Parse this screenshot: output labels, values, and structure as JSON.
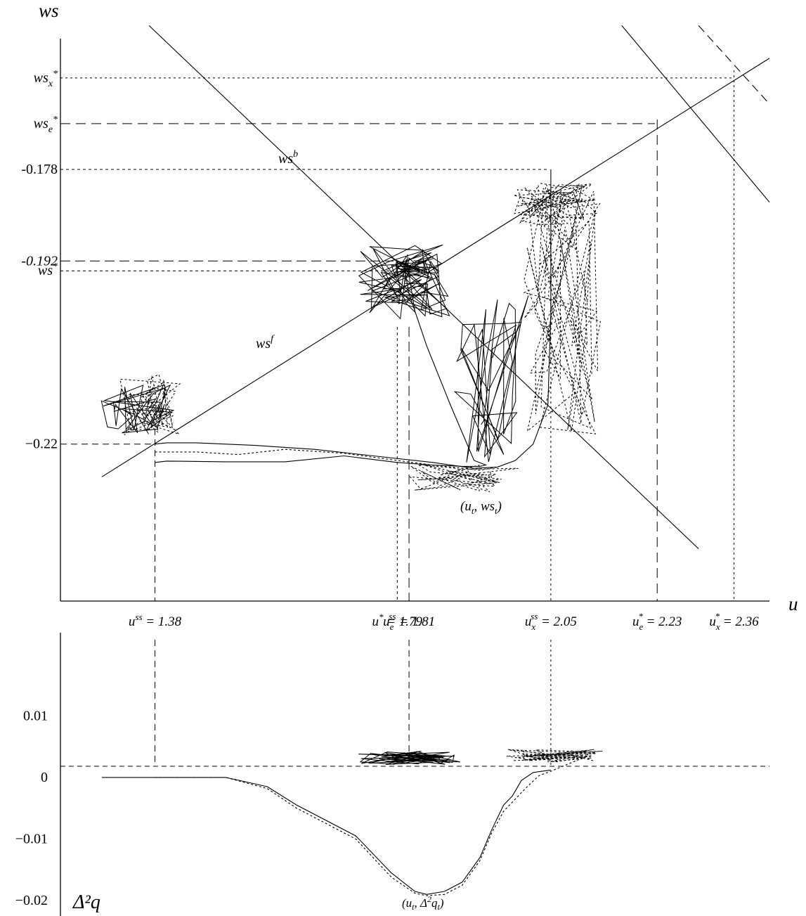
{
  "chart_data": [
    {
      "type": "line",
      "panel": "top",
      "ylabel": "ws",
      "xlabel": "u",
      "x_ticks": [
        {
          "value": 1.38,
          "sym": "u",
          "sup": "ss",
          "sub": "",
          "text": " = 1.38"
        },
        {
          "value": 1.79,
          "sym": "u",
          "sup": "*",
          "sub": "",
          "text": " = 1.79"
        },
        {
          "value": 1.81,
          "sym": "u",
          "sup": "ss",
          "sub": "e",
          "text": " = 1.81"
        },
        {
          "value": 2.05,
          "sym": "u",
          "sup": "ss",
          "sub": "x",
          "text": " = 2.05"
        },
        {
          "value": 2.23,
          "sym": "u",
          "sup": "*",
          "sub": "e",
          "text": " = 2.23"
        },
        {
          "value": 2.36,
          "sym": "u",
          "sup": "*",
          "sub": "x",
          "text": " = 2.36"
        }
      ],
      "y_ticks": [
        {
          "value": -0.164,
          "sym": "ws",
          "sup": "*",
          "sub": "x",
          "text": ""
        },
        {
          "value": -0.171,
          "sym": "ws",
          "sup": "*",
          "sub": "e",
          "text": ""
        },
        {
          "value": -0.178,
          "sym": "",
          "sup": "",
          "sub": "",
          "text": "-0.178"
        },
        {
          "value": -0.192,
          "sym": "",
          "sup": "",
          "sub": "",
          "text": "-0.192"
        },
        {
          "value": -0.1935,
          "sym": "ws",
          "sup": "*",
          "sub": "",
          "text": ""
        },
        {
          "value": -0.22,
          "sym": "",
          "sup": "",
          "sub": "",
          "text": "−0.22"
        }
      ],
      "xlim": [
        1.22,
        2.42
      ],
      "ylim": [
        -0.244,
        -0.158
      ],
      "series": [
        {
          "name": "ws^f",
          "style": "solid",
          "x": [
            1.29,
            2.42
          ],
          "y": [
            -0.225,
            -0.161
          ]
        },
        {
          "name": "ws^b",
          "style": "solid",
          "x": [
            1.37,
            2.3
          ],
          "y": [
            -0.156,
            -0.236
          ]
        },
        {
          "name": "",
          "style": "solid",
          "x": [
            2.17,
            2.42
          ],
          "y": [
            -0.156,
            -0.183
          ]
        },
        {
          "name": "",
          "style": "dashed",
          "x": [
            2.3,
            2.42
          ],
          "y": [
            -0.156,
            -0.168
          ]
        },
        {
          "name": "",
          "style": "solid",
          "x": [
            1.38,
            1.4,
            1.45,
            1.55,
            1.65,
            1.75,
            1.85,
            1.92,
            1.96,
            1.99,
            2.02,
            2.045,
            2.05,
            2.05
          ],
          "y": [
            -0.22,
            -0.2198,
            -0.2198,
            -0.2202,
            -0.2208,
            -0.2218,
            -0.2228,
            -0.2237,
            -0.2235,
            -0.2225,
            -0.22,
            -0.214,
            -0.2,
            -0.178
          ]
        },
        {
          "name": "",
          "style": "solid",
          "x": [
            1.38,
            1.4,
            1.5,
            1.6,
            1.7,
            1.79,
            1.85,
            1.9,
            1.93,
            1.94,
            1.92,
            1.88,
            1.84,
            1.81,
            1.8
          ],
          "y": [
            -0.2228,
            -0.2226,
            -0.2227,
            -0.2227,
            -0.2218,
            -0.2228,
            -0.2232,
            -0.2234,
            -0.2234,
            -0.2232,
            -0.2225,
            -0.214,
            -0.205,
            -0.197,
            -0.192
          ]
        },
        {
          "name": "",
          "style": "dotted",
          "x": [
            1.38,
            1.45,
            1.52,
            1.6,
            1.7,
            1.79,
            1.85,
            1.9,
            1.93,
            1.96
          ],
          "y": [
            -0.2212,
            -0.2212,
            -0.2216,
            -0.2208,
            -0.2214,
            -0.2225,
            -0.2232,
            -0.2237,
            -0.224,
            -0.2235
          ]
        }
      ],
      "labels": [
        {
          "sym": "ws",
          "sup": "b",
          "sub": "",
          "text": ""
        },
        {
          "sym": "ws",
          "sup": "f",
          "sub": "",
          "text": ""
        },
        {
          "sym": "",
          "sup": "",
          "sub": "",
          "text": "(u"
        },
        {
          "sym": "",
          "sup": "",
          "sub": "t",
          "text": ", ws"
        },
        {
          "sym": "",
          "sup": "",
          "sub": "t",
          "text": ")"
        }
      ]
    },
    {
      "type": "line",
      "panel": "bottom",
      "ylabel": "Δ²q",
      "y_ticks": [
        {
          "value": 0.01,
          "text": "0.01"
        },
        {
          "value": 0,
          "text": "0"
        },
        {
          "value": -0.01,
          "text": "−0.01"
        },
        {
          "value": -0.02,
          "text": "−0.02"
        }
      ],
      "ylim": [
        -0.0225,
        0.0235
      ],
      "xlim": [
        1.22,
        2.42
      ],
      "series": [
        {
          "name": "",
          "style": "solid",
          "x": [
            1.29,
            1.38,
            1.5,
            1.57,
            1.62,
            1.72,
            1.78,
            1.82,
            1.84,
            1.87,
            1.9,
            1.93,
            1.95,
            1.97,
            1.985,
            2.0,
            2.02,
            2.035,
            2.05
          ],
          "y": [
            0,
            0,
            0,
            -0.0015,
            -0.0045,
            -0.0095,
            -0.0155,
            -0.0185,
            -0.019,
            -0.0185,
            -0.017,
            -0.013,
            -0.0085,
            -0.0045,
            -0.003,
            -0.0005,
            0.0008,
            0.001,
            0.0012
          ]
        },
        {
          "name": "",
          "style": "dotted",
          "x": [
            1.38,
            1.5,
            1.57,
            1.62,
            1.72,
            1.78,
            1.82,
            1.84,
            1.87,
            1.9,
            1.93,
            1.95,
            1.97,
            1.99,
            2.01,
            2.03,
            2.05,
            2.08,
            2.1
          ],
          "y": [
            0,
            0,
            -0.0018,
            -0.005,
            -0.01,
            -0.0162,
            -0.0188,
            -0.0192,
            -0.019,
            -0.0175,
            -0.0135,
            -0.009,
            -0.0055,
            -0.0035,
            -0.0015,
            0.0003,
            0.001,
            0.0022,
            0.003
          ]
        }
      ],
      "labels": [
        {
          "text": "(u"
        },
        {
          "text": ", Δ"
        },
        {
          "text": "2"
        },
        {
          "text": "q"
        },
        {
          "text": "t"
        },
        {
          "text": ")"
        }
      ]
    }
  ]
}
